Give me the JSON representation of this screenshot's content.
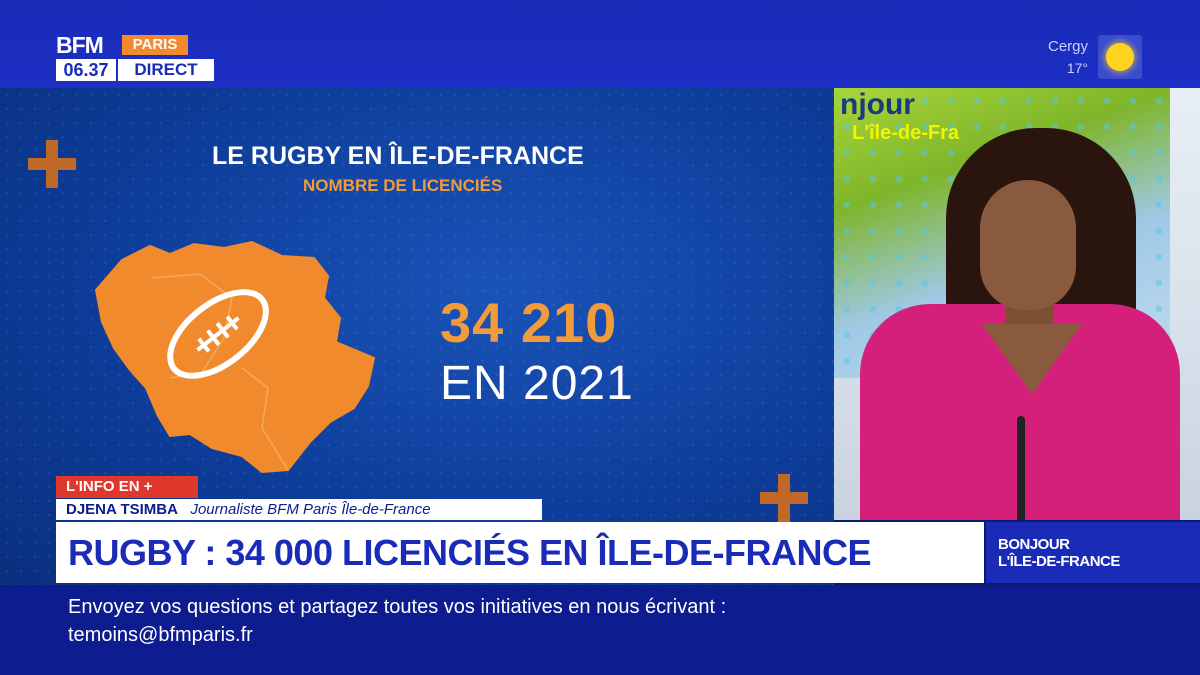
{
  "channel": {
    "brand": "BFM",
    "region": "PARIS",
    "time": "06.37",
    "live": "DIRECT"
  },
  "weather": {
    "city": "Cergy",
    "temperature": "17°",
    "icon": "sun-icon"
  },
  "graphic": {
    "title": "LE RUGBY EN ÎLE-DE-FRANCE",
    "subtitle": "NOMBRE DE LICENCIÉS",
    "number": "34 210",
    "year_label": "EN 2021",
    "accent": "#f29b3a"
  },
  "studio_screen": {
    "text1": "njour",
    "text2": "L'île-de-Fra"
  },
  "lower_third": {
    "tag": "L'INFO EN +",
    "reporter_name": "DJENA TSIMBA",
    "reporter_role": "Journaliste BFM Paris Île-de-France",
    "headline": "RUGBY : 34 000 LICENCIÉS EN ÎLE-DE-FRANCE",
    "show_line1": "BONJOUR",
    "show_line2": "L'ÎLE-DE-FRANCE"
  },
  "ticker": {
    "line1": "Envoyez vos questions et partagez toutes vos initiatives en nous écrivant :",
    "line2": "temoins@bfmparis.fr"
  },
  "colors": {
    "brand_blue": "#1a2bb8",
    "orange": "#f08a2c",
    "red": "#e0372c"
  }
}
